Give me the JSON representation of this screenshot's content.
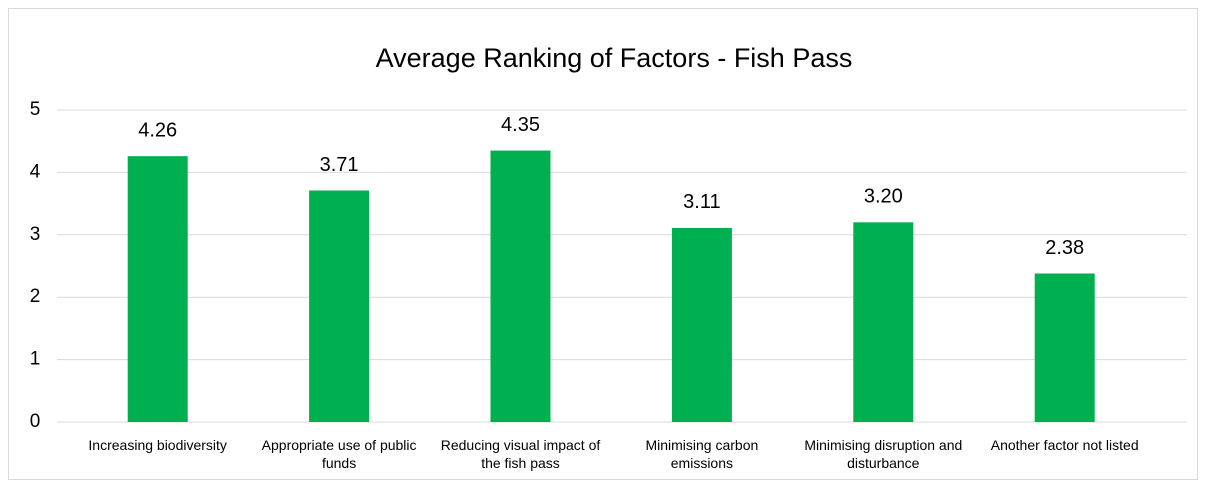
{
  "chart_data": {
    "type": "bar",
    "title": "Average Ranking of Factors - Fish Pass",
    "categories": [
      "Increasing biodiversity",
      "Appropriate use of public funds",
      "Reducing visual impact of the fish pass",
      "Minimising carbon emissions",
      "Minimising disruption and disturbance",
      "Another factor not listed"
    ],
    "values": [
      4.26,
      3.71,
      4.35,
      3.11,
      3.2,
      2.38
    ],
    "value_labels": [
      "4.26",
      "3.71",
      "4.35",
      "3.11",
      "3.20",
      "2.38"
    ],
    "color": "#00b050",
    "ylim": [
      0,
      5
    ],
    "yticks": [
      0,
      1,
      2,
      3,
      4,
      5
    ],
    "grid": true
  }
}
